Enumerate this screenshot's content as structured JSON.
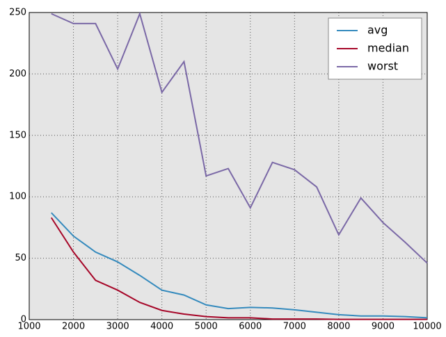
{
  "chart_data": {
    "type": "line",
    "x": [
      1500,
      2000,
      2500,
      3000,
      3500,
      4000,
      4500,
      5000,
      5500,
      6000,
      6500,
      7000,
      7500,
      8000,
      8500,
      9000,
      9500,
      10000
    ],
    "series": [
      {
        "name": "avg",
        "color": "#348abd",
        "values": [
          87,
          68,
          55,
          47,
          36,
          24,
          20,
          12,
          9,
          10,
          9.5,
          8,
          6,
          4,
          3,
          3,
          2.5,
          1.5
        ]
      },
      {
        "name": "median",
        "color": "#a60628",
        "values": [
          83,
          55,
          32,
          24,
          14,
          7.5,
          4.5,
          2.5,
          1.5,
          1.5,
          0.5,
          0.5,
          0.5,
          0.2,
          0.2,
          0.2,
          0.2,
          0.2
        ]
      },
      {
        "name": "worst",
        "color": "#7a68a6",
        "values": [
          249,
          241,
          241,
          204,
          249,
          185,
          210,
          117,
          123,
          91,
          128,
          122,
          108,
          69,
          99,
          79,
          63,
          46
        ]
      }
    ],
    "xlim": [
      1000,
      10000
    ],
    "xticks": [
      1000,
      2000,
      3000,
      4000,
      5000,
      6000,
      7000,
      8000,
      9000,
      10000
    ],
    "ylim": [
      0,
      250
    ],
    "yticks": [
      0,
      50,
      100,
      150,
      200,
      250
    ],
    "grid": true,
    "legend": "upper right"
  }
}
